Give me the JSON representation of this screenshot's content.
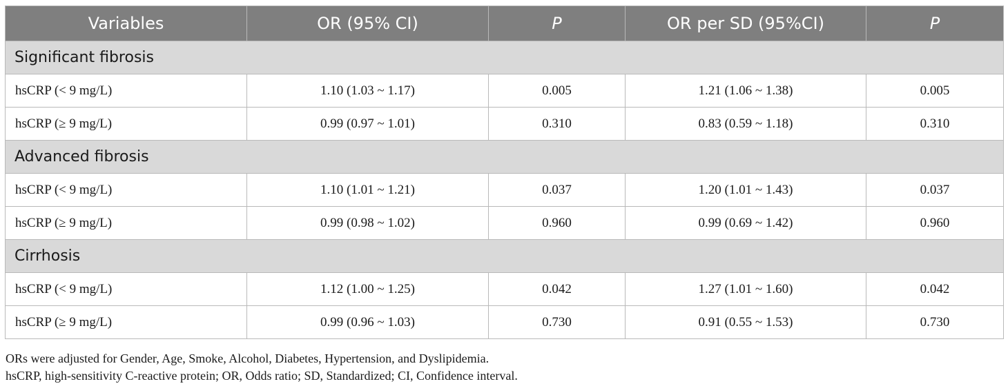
{
  "header": {
    "col_variables": "Variables",
    "col_or": "OR (95% CI)",
    "col_p1": "P",
    "col_or_sd": "OR per SD (95%CI)",
    "col_p2": "P"
  },
  "groups": [
    {
      "title": "Significant fibrosis",
      "rows": [
        {
          "variable": "hsCRP (< 9 mg/L)",
          "or": "1.10 (1.03 ~ 1.17)",
          "p1": "0.005",
          "or_sd": "1.21 (1.06 ~ 1.38)",
          "p2": "0.005"
        },
        {
          "variable": "hsCRP (≥ 9 mg/L)",
          "or": "0.99 (0.97 ~ 1.01)",
          "p1": "0.310",
          "or_sd": "0.83 (0.59 ~ 1.18)",
          "p2": "0.310"
        }
      ]
    },
    {
      "title": "Advanced fibrosis",
      "rows": [
        {
          "variable": "hsCRP (< 9 mg/L)",
          "or": "1.10 (1.01 ~ 1.21)",
          "p1": "0.037",
          "or_sd": "1.20 (1.01 ~ 1.43)",
          "p2": "0.037"
        },
        {
          "variable": "hsCRP (≥ 9 mg/L)",
          "or": "0.99 (0.98 ~ 1.02)",
          "p1": "0.960",
          "or_sd": "0.99 (0.69 ~ 1.42)",
          "p2": "0.960"
        }
      ]
    },
    {
      "title": "Cirrhosis",
      "rows": [
        {
          "variable": "hsCRP (< 9 mg/L)",
          "or": "1.12 (1.00 ~ 1.25)",
          "p1": "0.042",
          "or_sd": "1.27 (1.01 ~ 1.60)",
          "p2": "0.042"
        },
        {
          "variable": "hsCRP (≥ 9 mg/L)",
          "or": "0.99 (0.96 ~ 1.03)",
          "p1": "0.730",
          "or_sd": "0.91 (0.55 ~ 1.53)",
          "p2": "0.730"
        }
      ]
    }
  ],
  "footnotes": {
    "line1": "ORs were adjusted for Gender, Age, Smoke, Alcohol, Diabetes, Hypertension, and Dyslipidemia.",
    "line2": "hsCRP, high-sensitivity C-reactive protein; OR, Odds ratio; SD, Standardized; CI, Confidence interval."
  },
  "colors": {
    "header_bg": "#7f7f7f",
    "group_bg": "#d9d9d9",
    "border": "#b9b9b9"
  }
}
